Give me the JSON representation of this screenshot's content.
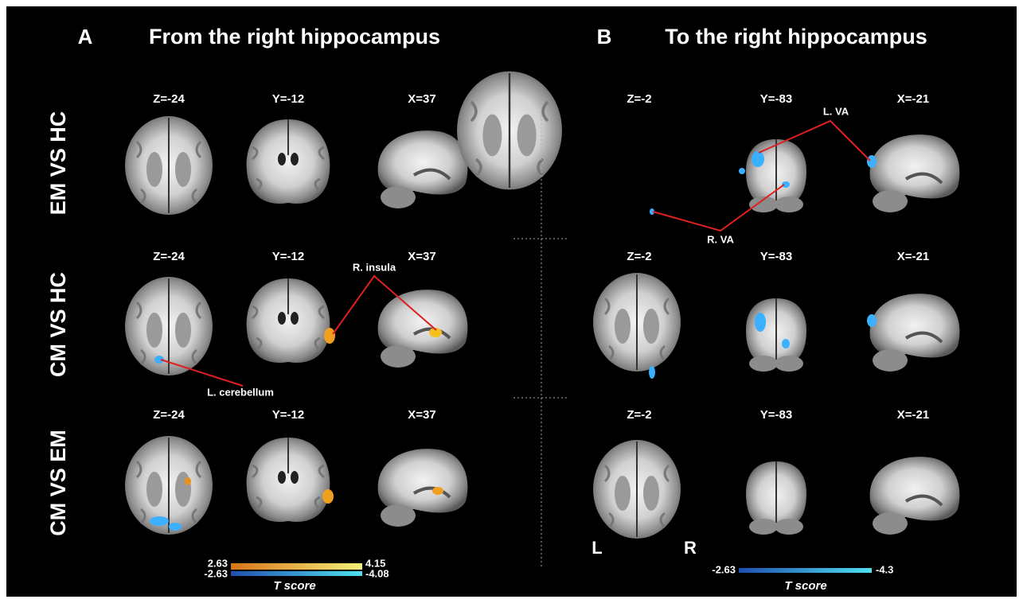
{
  "row_labels": [
    "EM VS HC",
    "CM VS HC",
    "CM VS EM"
  ],
  "panels": [
    {
      "letter": "A",
      "title": "From the right hippocampus",
      "slice_labels": [
        [
          "Z=-24",
          "Y=-12",
          "X=37"
        ],
        [
          "Z=-24",
          "Y=-12",
          "X=37"
        ],
        [
          "Z=-24",
          "Y=-12",
          "X=37"
        ]
      ],
      "annotations": [
        "R. insula",
        "L. cerebellum"
      ],
      "colorbar": {
        "positive": [
          "2.63",
          "4.15"
        ],
        "negative": [
          "-2.63",
          "-4.08"
        ],
        "label": "T score"
      }
    },
    {
      "letter": "B",
      "title": "To the right hippocampus",
      "slice_labels": [
        [
          "Z=-2",
          "Y=-83",
          "X=-21"
        ],
        [
          "Z=-2",
          "Y=-83",
          "X=-21"
        ],
        [
          "Z=-2",
          "Y=-83",
          "X=-21"
        ]
      ],
      "annotations": [
        "L. VA",
        "R. VA"
      ],
      "orientation": [
        "L",
        "R"
      ],
      "colorbar": {
        "negative": [
          "-2.63",
          "-4.3"
        ],
        "label": "T score"
      }
    }
  ]
}
